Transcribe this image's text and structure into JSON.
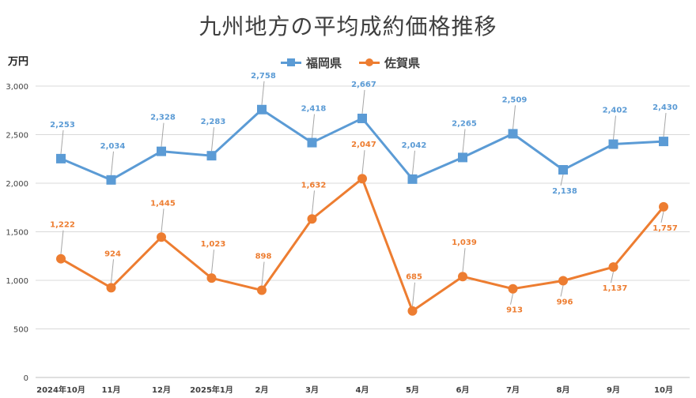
{
  "chart_data": {
    "type": "line",
    "title": "九州地方の平均成約価格推移",
    "ylabel": "万円",
    "xlabel": "",
    "ylim": [
      0,
      3000
    ],
    "yticks": [
      "0",
      "500",
      "1,000",
      "1,500",
      "2,000",
      "2,500",
      "3,000"
    ],
    "grid": true,
    "legend_position": "top-center",
    "categories": [
      "2024年10月",
      "11月",
      "12月",
      "2025年1月",
      "2月",
      "3月",
      "4月",
      "5月",
      "6月",
      "7月",
      "8月",
      "9月",
      "10月"
    ],
    "series": [
      {
        "name": "福岡県",
        "color": "#5b9bd5",
        "marker": "square",
        "values": [
          2253,
          2034,
          2328,
          2283,
          2758,
          2418,
          2667,
          2042,
          2265,
          2509,
          2138,
          2402,
          2430
        ],
        "labels": [
          "2,253",
          "2,034",
          "2,328",
          "2,283",
          "2,758",
          "2,418",
          "2,667",
          "2,042",
          "2,265",
          "2,509",
          "2,138",
          "2,402",
          "2,430"
        ]
      },
      {
        "name": "佐賀県",
        "color": "#ed7d31",
        "marker": "circle",
        "values": [
          1222,
          924,
          1445,
          1023,
          898,
          1632,
          2047,
          685,
          1039,
          913,
          996,
          1137,
          1757
        ],
        "labels": [
          "1,222",
          "924",
          "1,445",
          "1,023",
          "898",
          "1,632",
          "2,047",
          "685",
          "1,039",
          "913",
          "996",
          "1,137",
          "1,757"
        ]
      }
    ]
  }
}
